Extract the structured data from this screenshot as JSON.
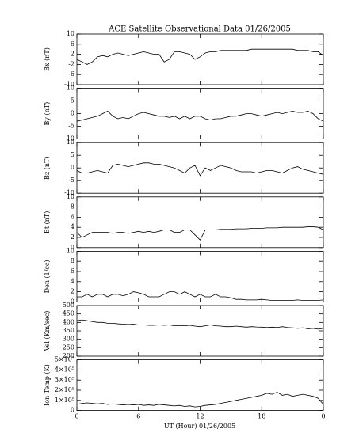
{
  "chart_data": {
    "type": "line",
    "title": "ACE Satellite Observational Data   01/26/2005",
    "xlabel": "UT (Hour)  01/26/2005",
    "color": "#000000",
    "xlim": [
      0,
      24
    ],
    "xticks": [
      0,
      6,
      12,
      18,
      {
        "value": 24,
        "label": "0"
      }
    ],
    "x": [
      0,
      0.5,
      1,
      1.5,
      2,
      2.5,
      3,
      3.5,
      4,
      4.5,
      5,
      5.5,
      6,
      6.5,
      7,
      7.5,
      8,
      8.5,
      9,
      9.5,
      10,
      10.5,
      11,
      11.5,
      12,
      12.5,
      13,
      13.5,
      14,
      14.5,
      15,
      15.5,
      16,
      16.5,
      17,
      17.5,
      18,
      18.5,
      19,
      19.5,
      20,
      20.5,
      21,
      21.5,
      22,
      22.5,
      23,
      23.5,
      24
    ],
    "panels": [
      {
        "ylabel": "Bx (nT)",
        "ylim": [
          -10,
          10
        ],
        "yticks": [
          -10,
          -6,
          -2,
          2,
          6,
          10
        ],
        "values": [
          0,
          -1,
          -2,
          -1,
          1,
          1.5,
          1,
          2,
          2.5,
          2,
          1.5,
          2,
          2.5,
          3,
          2.5,
          2,
          2,
          -1,
          0,
          3,
          3,
          2.5,
          2,
          0,
          1,
          2.5,
          3,
          3,
          3.5,
          3.5,
          3.5,
          3.5,
          3.5,
          3.5,
          4,
          4,
          4,
          4,
          4,
          4,
          4,
          4,
          4,
          3.5,
          3.5,
          3.5,
          3,
          3,
          1.5
        ]
      },
      {
        "ylabel": "By (nT)",
        "ylim": [
          -10,
          10
        ],
        "yticks": [
          -10,
          -5,
          0,
          5,
          10
        ],
        "values": [
          -3,
          -2.5,
          -2,
          -1.5,
          -1,
          0,
          1,
          -1,
          -2,
          -1.5,
          -2,
          -1,
          0,
          0.5,
          0,
          -0.5,
          -1,
          -1,
          -1.5,
          -1,
          -2,
          -1,
          -2,
          -1,
          -1,
          -2,
          -2.5,
          -2,
          -2,
          -1.5,
          -1,
          -1,
          -0.5,
          0,
          0,
          -0.5,
          -1,
          -0.5,
          0,
          0.5,
          0,
          0.5,
          1,
          0.5,
          0.5,
          1,
          0,
          -2,
          -3
        ]
      },
      {
        "ylabel": "Bz (nT)",
        "ylim": [
          -10,
          10
        ],
        "yticks": [
          -10,
          -5,
          0,
          5,
          10
        ],
        "values": [
          -1,
          -2,
          -2,
          -1.5,
          -1,
          -1.5,
          -2,
          1,
          1.5,
          1,
          0.5,
          1,
          1.5,
          2,
          2,
          1.5,
          1.5,
          1,
          0.5,
          0,
          -1,
          -2,
          0,
          1,
          -3,
          0,
          -1,
          0,
          1,
          0.5,
          0,
          -1,
          -1.5,
          -1.5,
          -1.5,
          -2,
          -1.5,
          -1,
          -1,
          -1.5,
          -2,
          -1,
          0,
          0.5,
          -0.5,
          -1,
          -1.5,
          -2,
          -2.5
        ]
      },
      {
        "ylabel": "Bt (nT)",
        "ylim": [
          0,
          10
        ],
        "yticks": [
          0,
          2,
          4,
          6,
          8,
          10
        ],
        "values": [
          3,
          2,
          2.5,
          3,
          3,
          3,
          3,
          2.8,
          3,
          3,
          2.8,
          3,
          3.2,
          3,
          3.2,
          3,
          3.2,
          3.5,
          3.5,
          3,
          3,
          3.5,
          3.5,
          2.5,
          1.5,
          3.5,
          3.5,
          3.5,
          3.6,
          3.6,
          3.6,
          3.7,
          3.7,
          3.7,
          3.8,
          3.8,
          3.8,
          3.9,
          3.9,
          3.9,
          4,
          4,
          4,
          4,
          4,
          4.1,
          4.1,
          4,
          3.5
        ]
      },
      {
        "ylabel": "Den (1/cc)",
        "ylim": [
          0,
          10
        ],
        "yticks": [
          0,
          2,
          4,
          6,
          8,
          10
        ],
        "values": [
          1,
          1,
          1.5,
          1,
          1.5,
          1.5,
          1,
          1.5,
          1.5,
          1.2,
          1.5,
          2,
          1.8,
          1.5,
          1,
          1,
          1,
          1.5,
          2,
          2,
          1.5,
          2,
          1.5,
          1,
          1.5,
          1,
          1,
          1.5,
          1,
          1,
          0.8,
          0.5,
          0.5,
          0.4,
          0.4,
          0.4,
          0.5,
          0.4,
          0.3,
          0.3,
          0.3,
          0.3,
          0.3,
          0.4,
          0.3,
          0.3,
          0.3,
          0.3,
          0.4
        ]
      },
      {
        "ylabel": "Vel (Km/sec)",
        "ylim": [
          200,
          500
        ],
        "yticks": [
          200,
          250,
          300,
          350,
          400,
          450,
          500
        ],
        "values": [
          410,
          415,
          410,
          405,
          400,
          400,
          395,
          395,
          392,
          390,
          388,
          390,
          385,
          385,
          383,
          383,
          385,
          383,
          385,
          380,
          382,
          380,
          383,
          378,
          375,
          380,
          385,
          380,
          378,
          375,
          375,
          378,
          375,
          372,
          375,
          373,
          372,
          370,
          372,
          370,
          375,
          370,
          368,
          365,
          368,
          362,
          365,
          360,
          365
        ]
      },
      {
        "ylabel": "Ion Temp (K)",
        "ylim": [
          0,
          500000
        ],
        "yticks": [
          0,
          {
            "value": 100000,
            "label": "1×10⁵"
          },
          {
            "value": 200000,
            "label": "2×10⁵"
          },
          {
            "value": 300000,
            "label": "3×10⁵"
          },
          {
            "value": 400000,
            "label": "4×10⁵"
          },
          {
            "value": 500000,
            "label": "5×10⁵"
          }
        ],
        "values": [
          60000,
          70000,
          75000,
          70000,
          65000,
          70000,
          60000,
          65000,
          60000,
          55000,
          60000,
          55000,
          60000,
          50000,
          55000,
          50000,
          60000,
          55000,
          50000,
          45000,
          50000,
          40000,
          45000,
          35000,
          40000,
          50000,
          55000,
          60000,
          70000,
          80000,
          90000,
          100000,
          110000,
          120000,
          130000,
          140000,
          150000,
          170000,
          160000,
          180000,
          150000,
          160000,
          140000,
          150000,
          160000,
          150000,
          140000,
          120000,
          60000
        ]
      }
    ]
  }
}
